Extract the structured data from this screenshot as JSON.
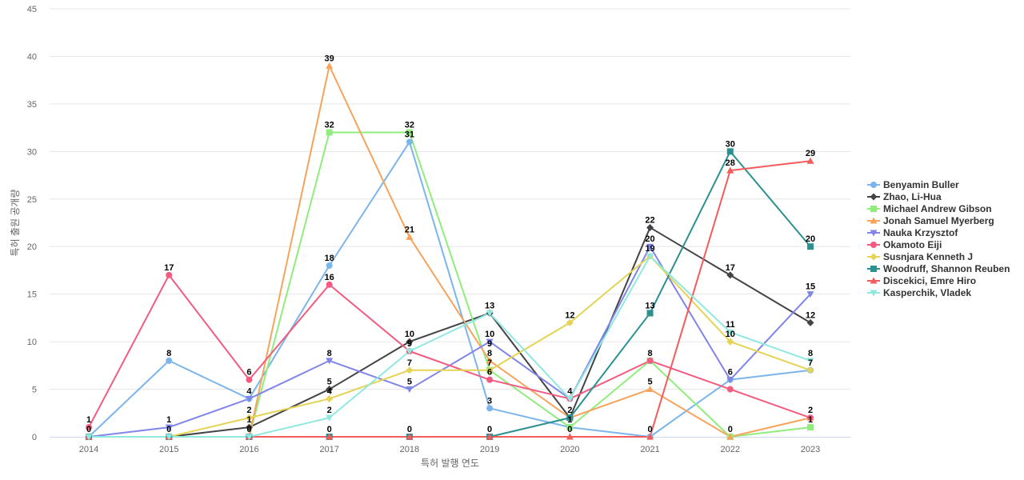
{
  "chart_data": {
    "type": "line",
    "title": "",
    "xlabel": "특허 발행 연도",
    "ylabel": "특허 출원 공개량",
    "x": [
      2014,
      2015,
      2016,
      2017,
      2018,
      2019,
      2020,
      2021,
      2022,
      2023
    ],
    "ylim": [
      0,
      45
    ],
    "yticks": [
      0,
      5,
      10,
      15,
      20,
      25,
      30,
      35,
      40,
      45
    ],
    "grid": true,
    "legend_position": "right",
    "series": [
      {
        "name": "Benyamin Buller",
        "color": "#7cb5ec",
        "marker": "circle",
        "values": [
          0,
          8,
          4,
          18,
          31,
          3,
          1,
          0,
          6,
          7
        ]
      },
      {
        "name": "Zhao, Li-Hua",
        "color": "#434348",
        "marker": "diamond",
        "values": [
          0,
          0,
          1,
          5,
          10,
          13,
          2,
          22,
          17,
          12
        ]
      },
      {
        "name": "Michael Andrew Gibson",
        "color": "#90ed7d",
        "marker": "square",
        "values": [
          0,
          0,
          0,
          32,
          32,
          7,
          1,
          8,
          0,
          1
        ]
      },
      {
        "name": "Jonah Samuel Myerberg",
        "color": "#f7a35c",
        "marker": "triangle",
        "values": [
          0,
          0,
          0,
          39,
          21,
          8,
          2,
          5,
          0,
          2
        ]
      },
      {
        "name": "Nauka Krzysztof",
        "color": "#8085e9",
        "marker": "triangle-down",
        "values": [
          0,
          1,
          4,
          8,
          5,
          10,
          4,
          20,
          6,
          15
        ]
      },
      {
        "name": "Okamoto Eiji",
        "color": "#f15c80",
        "marker": "circle",
        "values": [
          1,
          17,
          6,
          16,
          9,
          6,
          4,
          8,
          5,
          2
        ]
      },
      {
        "name": "Susnjara Kenneth J",
        "color": "#e4d354",
        "marker": "diamond",
        "values": [
          0,
          0,
          2,
          4,
          7,
          7,
          12,
          19,
          10,
          7
        ]
      },
      {
        "name": "Woodruff, Shannon Reuben",
        "color": "#2b908f",
        "marker": "square",
        "values": [
          0,
          0,
          0,
          0,
          0,
          0,
          2,
          13,
          30,
          20
        ]
      },
      {
        "name": "Discekici, Emre Hiro",
        "color": "#f45b5b",
        "marker": "triangle",
        "values": [
          0,
          0,
          0,
          0,
          0,
          0,
          0,
          0,
          28,
          29
        ]
      },
      {
        "name": "Kasperchik, Vladek",
        "color": "#91e8e1",
        "marker": "triangle-down",
        "values": [
          0,
          0,
          0,
          2,
          9,
          13,
          4,
          19,
          11,
          8
        ]
      }
    ],
    "data_labels": [
      {
        "x": 2014,
        "y": 1,
        "text": "1"
      },
      {
        "x": 2014,
        "y": 0,
        "text": "0"
      },
      {
        "x": 2015,
        "y": 17,
        "text": "17"
      },
      {
        "x": 2015,
        "y": 8,
        "text": "8"
      },
      {
        "x": 2015,
        "y": 1,
        "text": "1"
      },
      {
        "x": 2015,
        "y": 0,
        "text": "0"
      },
      {
        "x": 2016,
        "y": 6,
        "text": "6"
      },
      {
        "x": 2016,
        "y": 4,
        "text": "4"
      },
      {
        "x": 2016,
        "y": 2,
        "text": "2"
      },
      {
        "x": 2016,
        "y": 1,
        "text": "1"
      },
      {
        "x": 2016,
        "y": 0,
        "text": "0"
      },
      {
        "x": 2017,
        "y": 39,
        "text": "39"
      },
      {
        "x": 2017,
        "y": 32,
        "text": "32"
      },
      {
        "x": 2017,
        "y": 18,
        "text": "18"
      },
      {
        "x": 2017,
        "y": 16,
        "text": "16"
      },
      {
        "x": 2017,
        "y": 8,
        "text": "8"
      },
      {
        "x": 2017,
        "y": 5,
        "text": "5"
      },
      {
        "x": 2017,
        "y": 4,
        "text": "4"
      },
      {
        "x": 2017,
        "y": 2,
        "text": "2"
      },
      {
        "x": 2017,
        "y": 0,
        "text": "0"
      },
      {
        "x": 2018,
        "y": 32,
        "text": "32"
      },
      {
        "x": 2018,
        "y": 31,
        "text": "31"
      },
      {
        "x": 2018,
        "y": 21,
        "text": "21"
      },
      {
        "x": 2018,
        "y": 10,
        "text": "10"
      },
      {
        "x": 2018,
        "y": 9,
        "text": "9"
      },
      {
        "x": 2018,
        "y": 7,
        "text": "7"
      },
      {
        "x": 2018,
        "y": 5,
        "text": "5"
      },
      {
        "x": 2018,
        "y": 0,
        "text": "0"
      },
      {
        "x": 2019,
        "y": 13,
        "text": "13"
      },
      {
        "x": 2019,
        "y": 10,
        "text": "10"
      },
      {
        "x": 2019,
        "y": 9,
        "text": "9"
      },
      {
        "x": 2019,
        "y": 8,
        "text": "8"
      },
      {
        "x": 2019,
        "y": 7,
        "text": "7"
      },
      {
        "x": 2019,
        "y": 6,
        "text": "6"
      },
      {
        "x": 2019,
        "y": 3,
        "text": "3"
      },
      {
        "x": 2019,
        "y": 0,
        "text": "0"
      },
      {
        "x": 2020,
        "y": 12,
        "text": "12"
      },
      {
        "x": 2020,
        "y": 4,
        "text": "4"
      },
      {
        "x": 2020,
        "y": 2,
        "text": "2"
      },
      {
        "x": 2020,
        "y": 1,
        "text": "1"
      },
      {
        "x": 2020,
        "y": 0,
        "text": "0"
      },
      {
        "x": 2021,
        "y": 22,
        "text": "22"
      },
      {
        "x": 2021,
        "y": 20,
        "text": "20"
      },
      {
        "x": 2021,
        "y": 19,
        "text": "19"
      },
      {
        "x": 2021,
        "y": 13,
        "text": "13"
      },
      {
        "x": 2021,
        "y": 8,
        "text": "8"
      },
      {
        "x": 2021,
        "y": 5,
        "text": "5"
      },
      {
        "x": 2021,
        "y": 0,
        "text": "0"
      },
      {
        "x": 2022,
        "y": 30,
        "text": "30"
      },
      {
        "x": 2022,
        "y": 28,
        "text": "28"
      },
      {
        "x": 2022,
        "y": 17,
        "text": "17"
      },
      {
        "x": 2022,
        "y": 11,
        "text": "11"
      },
      {
        "x": 2022,
        "y": 10,
        "text": "10"
      },
      {
        "x": 2022,
        "y": 6,
        "text": "6"
      },
      {
        "x": 2022,
        "y": 0,
        "text": "0"
      },
      {
        "x": 2023,
        "y": 29,
        "text": "29"
      },
      {
        "x": 2023,
        "y": 20,
        "text": "20"
      },
      {
        "x": 2023,
        "y": 15,
        "text": "15"
      },
      {
        "x": 2023,
        "y": 12,
        "text": "12"
      },
      {
        "x": 2023,
        "y": 8,
        "text": "8"
      },
      {
        "x": 2023,
        "y": 7,
        "text": "7"
      },
      {
        "x": 2023,
        "y": 2,
        "text": "2"
      },
      {
        "x": 2023,
        "y": 1,
        "text": "1"
      }
    ]
  }
}
